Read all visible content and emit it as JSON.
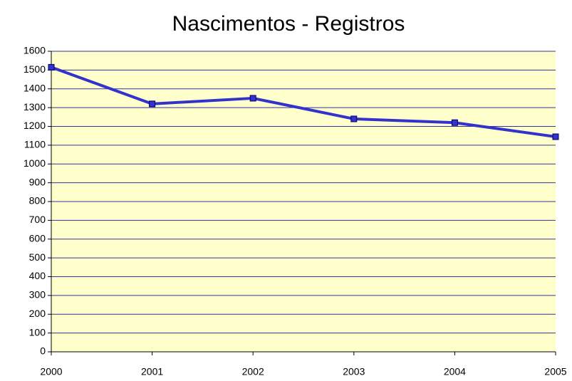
{
  "chart_data": {
    "type": "line",
    "title": "Nascimentos - Registros",
    "x": [
      2000,
      2001,
      2002,
      2003,
      2004,
      2005
    ],
    "series": [
      {
        "name": "Registros",
        "color": "#3333cc",
        "values": [
          1515,
          1320,
          1350,
          1240,
          1220,
          1145
        ]
      }
    ],
    "xlim": [
      2000,
      2005
    ],
    "xticks": [
      2000,
      2001,
      2002,
      2003,
      2004,
      2005
    ],
    "ylim": [
      0,
      1600
    ],
    "yticks": [
      0,
      100,
      200,
      300,
      400,
      500,
      600,
      700,
      800,
      900,
      1000,
      1100,
      1200,
      1300,
      1400,
      1500,
      1600
    ],
    "grid": true,
    "grid_color": "#333399",
    "background": "#ffffcc"
  }
}
